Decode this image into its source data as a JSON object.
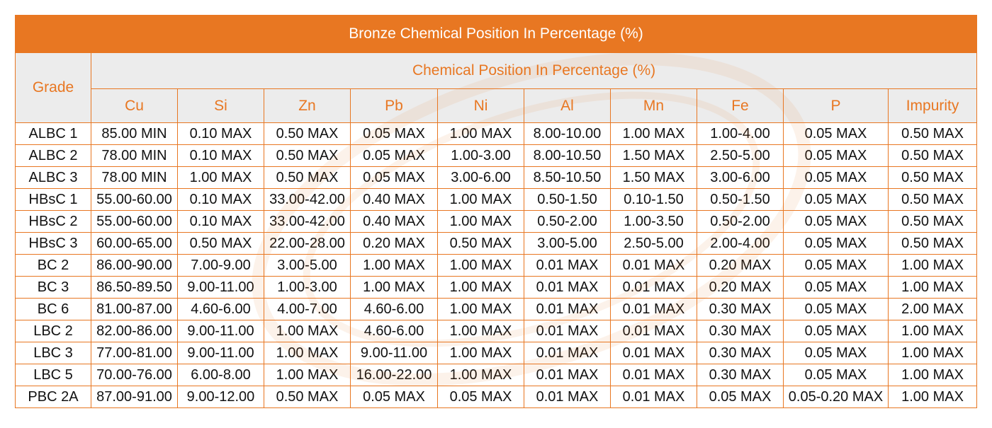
{
  "title": "Bronze Chemical Position In Percentage (%)",
  "grade_header": "Grade",
  "group_header": "Chemical Position In Percentage (%)",
  "columns": [
    "Cu",
    "Si",
    "Zn",
    "Pb",
    "Ni",
    "Al",
    "Mn",
    "Fe",
    "P",
    "Impurity"
  ],
  "rows": [
    [
      "ALBC 1",
      "85.00 MIN",
      "0.10 MAX",
      "0.50 MAX",
      "0.05 MAX",
      "1.00 MAX",
      "8.00-10.00",
      "1.00 MAX",
      "1.00-4.00",
      "0.05 MAX",
      "0.50 MAX"
    ],
    [
      "ALBC 2",
      "78.00 MIN",
      "0.10 MAX",
      "0.50 MAX",
      "0.05 MAX",
      "1.00-3.00",
      "8.00-10.50",
      "1.50 MAX",
      "2.50-5.00",
      "0.05 MAX",
      "0.50 MAX"
    ],
    [
      "ALBC 3",
      "78.00 MIN",
      "1.00 MAX",
      "0.50 MAX",
      "0.05 MAX",
      "3.00-6.00",
      "8.50-10.50",
      "1.50 MAX",
      "3.00-6.00",
      "0.05 MAX",
      "0.50 MAX"
    ],
    [
      "HBsC 1",
      "55.00-60.00",
      "0.10 MAX",
      "33.00-42.00",
      "0.40 MAX",
      "1.00 MAX",
      "0.50-1.50",
      "0.10-1.50",
      "0.50-1.50",
      "0.05 MAX",
      "0.50 MAX"
    ],
    [
      "HBsC 2",
      "55.00-60.00",
      "0.10 MAX",
      "33.00-42.00",
      "0.40 MAX",
      "1.00 MAX",
      "0.50-2.00",
      "1.00-3.50",
      "0.50-2.00",
      "0.05 MAX",
      "0.50 MAX"
    ],
    [
      "HBsC 3",
      "60.00-65.00",
      "0.50 MAX",
      "22.00-28.00",
      "0.20 MAX",
      "0.50 MAX",
      "3.00-5.00",
      "2.50-5.00",
      "2.00-4.00",
      "0.05 MAX",
      "0.50 MAX"
    ],
    [
      "BC 2",
      "86.00-90.00",
      "7.00-9.00",
      "3.00-5.00",
      "1.00 MAX",
      "1.00 MAX",
      "0.01 MAX",
      "0.01 MAX",
      "0.20 MAX",
      "0.05 MAX",
      "1.00 MAX"
    ],
    [
      "BC 3",
      "86.50-89.50",
      "9.00-11.00",
      "1.00-3.00",
      "1.00 MAX",
      "1.00 MAX",
      "0.01 MAX",
      "0.01 MAX",
      "0.20 MAX",
      "0.05 MAX",
      "1.00 MAX"
    ],
    [
      "BC 6",
      "81.00-87.00",
      "4.60-6.00",
      "4.00-7.00",
      "4.60-6.00",
      "1.00 MAX",
      "0.01 MAX",
      "0.01 MAX",
      "0.30 MAX",
      "0.05 MAX",
      "2.00 MAX"
    ],
    [
      "LBC 2",
      "82.00-86.00",
      "9.00-11.00",
      "1.00 MAX",
      "4.60-6.00",
      "1.00 MAX",
      "0.01 MAX",
      "0.01 MAX",
      "0.30 MAX",
      "0.05 MAX",
      "1.00 MAX"
    ],
    [
      "LBC 3",
      "77.00-81.00",
      "9.00-11.00",
      "1.00 MAX",
      "9.00-11.00",
      "1.00 MAX",
      "0.01 MAX",
      "0.01 MAX",
      "0.30 MAX",
      "0.05 MAX",
      "1.00 MAX"
    ],
    [
      "LBC 5",
      "70.00-76.00",
      "6.00-8.00",
      "1.00 MAX",
      "16.00-22.00",
      "1.00 MAX",
      "0.01 MAX",
      "0.01 MAX",
      "0.30 MAX",
      "0.05 MAX",
      "1.00 MAX"
    ],
    [
      "PBC 2A",
      "87.00-91.00",
      "9.00-12.00",
      "0.50 MAX",
      "0.05 MAX",
      "0.05 MAX",
      "0.01 MAX",
      "0.01 MAX",
      "0.05 MAX",
      "0.05-0.20 MAX",
      "1.00 MAX"
    ]
  ],
  "colors": {
    "accent": "#E87722",
    "header_bg": "#ECECEC",
    "text": "#111111"
  }
}
